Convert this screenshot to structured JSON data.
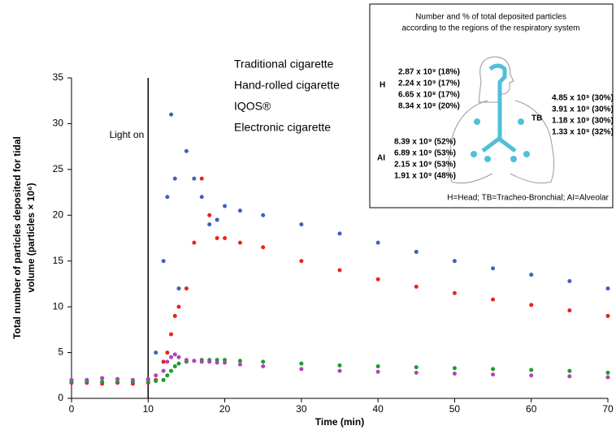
{
  "chart_data": {
    "type": "scatter",
    "xlabel": "Time (min)",
    "ylabel": [
      "Total number of particles deposited for tidal",
      "volume (particles × 10⁶)"
    ],
    "xlim": [
      0,
      70
    ],
    "xticks": [
      0,
      10,
      20,
      30,
      40,
      50,
      60,
      70
    ],
    "ylim": [
      0,
      35
    ],
    "yticks": [
      0,
      5,
      10,
      15,
      20,
      25,
      30,
      35
    ],
    "grid": false,
    "legend": "top",
    "annotation": {
      "x": 10,
      "label": "Light on"
    },
    "x": [
      0,
      2,
      4,
      6,
      8,
      10,
      11,
      12,
      12.5,
      13,
      13.5,
      14,
      15,
      16,
      17,
      18,
      19,
      20,
      22,
      25,
      30,
      35,
      40,
      45,
      50,
      55,
      60,
      65,
      70
    ],
    "series": [
      {
        "name": "Traditional cigarette",
        "color": "#3f5fbf",
        "values": [
          2,
          2,
          2.2,
          2.1,
          2,
          2.1,
          5,
          15,
          22,
          31,
          24,
          12,
          27,
          24,
          22,
          19,
          19.5,
          21,
          20.5,
          20,
          19,
          18,
          17,
          16,
          15,
          14.2,
          13.5,
          12.8,
          12
        ]
      },
      {
        "name": "Hand-rolled cigarette",
        "color": "#e8231f",
        "values": [
          1.7,
          1.7,
          1.6,
          1.7,
          1.6,
          1.7,
          2,
          4,
          5,
          7,
          9,
          10,
          12,
          17,
          24,
          20,
          17.5,
          17.5,
          17,
          16.5,
          15,
          14,
          13,
          12.2,
          11.5,
          10.8,
          10.2,
          9.6,
          9
        ]
      },
      {
        "name": "IQOS®",
        "color": "#1e9a2e",
        "values": [
          1.8,
          1.8,
          1.8,
          1.8,
          1.8,
          1.8,
          1.9,
          2,
          2.5,
          3,
          3.5,
          3.8,
          4,
          4.1,
          4.2,
          4.2,
          4.2,
          4.2,
          4.1,
          4,
          3.8,
          3.6,
          3.5,
          3.4,
          3.3,
          3.2,
          3.1,
          3,
          2.8
        ]
      },
      {
        "name": "Electronic cigarette",
        "color": "#b044b8",
        "values": [
          2,
          2,
          2.2,
          2.1,
          2,
          2.1,
          2.5,
          3,
          4,
          4.5,
          4.8,
          4.5,
          4.2,
          4.1,
          4,
          4,
          3.9,
          3.9,
          3.7,
          3.5,
          3.2,
          3,
          2.9,
          2.8,
          2.7,
          2.6,
          2.5,
          2.4,
          2.3
        ]
      }
    ],
    "inset": {
      "title": [
        "Number and % of total deposited particles",
        "according to the regions of the respiratory system"
      ],
      "regions": [
        {
          "label": "H",
          "lines": [
            "2.87 x 10⁹ (18%)",
            "2.24 x 10⁹ (17%)",
            "6.65 x 10⁸ (17%)",
            "8.34 x 10⁸ (20%)"
          ]
        },
        {
          "label": "TB",
          "lines": [
            "4.85 x 10⁹ (30%)",
            "3.91 x 10⁹ (30%)",
            "1.18 x 10⁹ (30%)",
            "1.33 x 10⁹ (32%)"
          ]
        },
        {
          "label": "AI",
          "lines": [
            "8.39 x 10⁹ (52%)",
            "6.89 x 10⁹ (53%)",
            "2.15 x 10⁹ (53%)",
            "1.91 x 10⁹ (48%)"
          ]
        }
      ],
      "footnote": "H=Head; TB=Tracheo-Bronchial; AI=Alveolar"
    }
  }
}
